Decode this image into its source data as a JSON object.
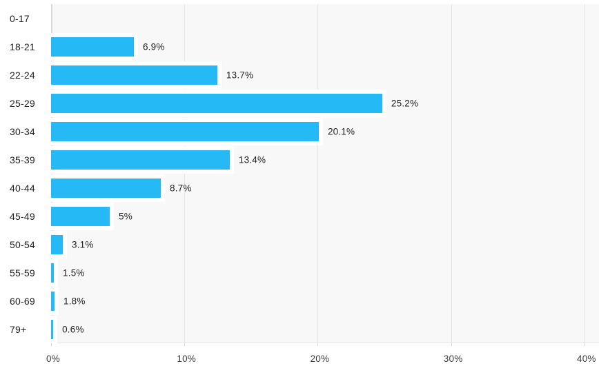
{
  "chart_data": {
    "type": "bar",
    "orientation": "horizontal",
    "title": "",
    "categories": [
      "0-17",
      "18-21",
      "22-24",
      "25-29",
      "30-34",
      "35-39",
      "40-44",
      "45-49",
      "50-54",
      "55-59",
      "60-69",
      "79+"
    ],
    "values": [
      0,
      6.9,
      13.7,
      25.2,
      20.1,
      13.4,
      8.7,
      5,
      3.1,
      1.5,
      1.8,
      0.6
    ],
    "value_labels": [
      "",
      "6.9%",
      "13.7%",
      "25.2%",
      "20.1%",
      "13.4%",
      "8.7%",
      "5%",
      "3.1%",
      "1.5%",
      "1.8%",
      "0.6%"
    ],
    "bar_display_percent": [
      0,
      6.21,
      12.47,
      24.84,
      20.08,
      13.4,
      8.23,
      4.4,
      0.88,
      0.21,
      0.26,
      0.16
    ],
    "x_axis": {
      "min": 0,
      "max": 40,
      "tick_step": 10,
      "tick_labels": [
        "0%",
        "10%",
        "20%",
        "30%",
        "40%"
      ],
      "grid": true
    },
    "y_axis": {
      "labels_position": "left"
    },
    "legend": "none",
    "colors": {
      "bar": "#25b9f5",
      "plot_background": "#f8f8f8",
      "gridline": "#e4e4e4",
      "axis_line": "#d9d9d9",
      "label_text": "#202020",
      "tick_text": "#3c3c3c",
      "background": "#ffffff"
    }
  }
}
